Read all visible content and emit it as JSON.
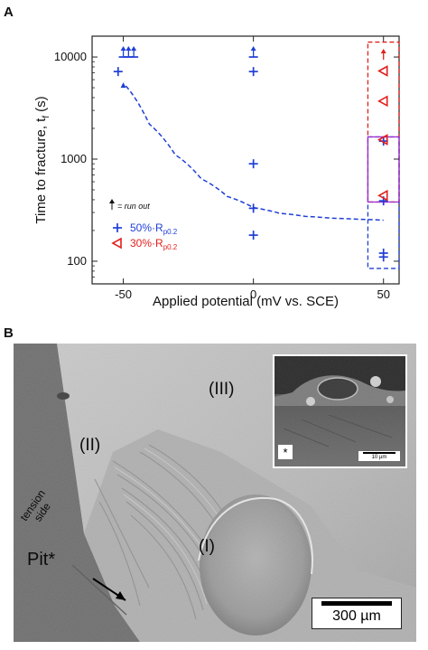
{
  "panel_a_letter": "A",
  "panel_b_letter": "B",
  "chart_data": {
    "type": "scatter",
    "xlabel": "Applied potential (mV vs. SCE)",
    "ylabel": "Time to fracture, t",
    "ylabel_sub": "f",
    "ylabel_unit": "(s)",
    "x_ticks": [
      "-50",
      "0",
      "50"
    ],
    "y_ticks": [
      "100",
      "1000",
      "10000"
    ],
    "xlim": [
      -62,
      56
    ],
    "ylim": [
      60,
      16000
    ],
    "y_scale": "log",
    "runout_note": "= run out",
    "legend": [
      {
        "label": "50%·R",
        "sub": "p0.2",
        "marker": "plus",
        "color": "#1f3fd6"
      },
      {
        "label": "30%·R",
        "sub": "p0.2",
        "marker": "triangle-left",
        "color": "#e0201c"
      }
    ],
    "series": [
      {
        "name": "50%·Rp0.2",
        "marker": "plus",
        "color": "#1f3fd6",
        "points": [
          {
            "x": -52,
            "y": 7200
          },
          {
            "x": -50,
            "y": 10000,
            "runout": true
          },
          {
            "x": -48,
            "y": 10000,
            "runout": true
          },
          {
            "x": -46,
            "y": 10000,
            "runout": true
          },
          {
            "x": 0,
            "y": 10000,
            "runout": true
          },
          {
            "x": 0,
            "y": 7200
          },
          {
            "x": 0,
            "y": 900
          },
          {
            "x": 0,
            "y": 330
          },
          {
            "x": 0,
            "y": 180
          },
          {
            "x": 50,
            "y": 1500
          },
          {
            "x": 50,
            "y": 390
          },
          {
            "x": 50,
            "y": 120
          },
          {
            "x": 50,
            "y": 110
          }
        ]
      },
      {
        "name": "30%·Rp0.2",
        "marker": "triangle-left",
        "color": "#e0201c",
        "points": [
          {
            "x": 50,
            "y": 10000,
            "runout": true
          },
          {
            "x": 50,
            "y": 7300
          },
          {
            "x": 50,
            "y": 3700
          },
          {
            "x": 50,
            "y": 1550
          },
          {
            "x": 50,
            "y": 440
          }
        ]
      }
    ],
    "trend_line": {
      "color": "#1f3fd6",
      "style": "dashed",
      "points": [
        [
          -49,
          5200
        ],
        [
          -40,
          2200
        ],
        [
          -30,
          1100
        ],
        [
          -20,
          640
        ],
        [
          -10,
          430
        ],
        [
          0,
          335
        ],
        [
          10,
          295
        ],
        [
          20,
          275
        ],
        [
          30,
          264
        ],
        [
          40,
          258
        ],
        [
          50,
          252
        ]
      ]
    },
    "highlight_boxes": [
      {
        "color": "#e0201c",
        "x0": 44,
        "x1": 56,
        "y0": 380,
        "y1": 14000
      },
      {
        "color": "#1f3fd6",
        "x0": 44,
        "x1": 56,
        "y0": 85,
        "y1": 1650
      },
      {
        "color": "#9b30d0",
        "x0": 44,
        "x1": 56,
        "y0": 380,
        "y1": 1650
      }
    ]
  },
  "micrograph": {
    "labels": {
      "region_iii": "(III)",
      "region_ii": "(II)",
      "region_i": "(I)",
      "tension_side": "tension side",
      "pit": "Pit*"
    },
    "scalebar": "300 µm",
    "inset": {
      "star": "*",
      "scalebar": "10 µm"
    }
  }
}
